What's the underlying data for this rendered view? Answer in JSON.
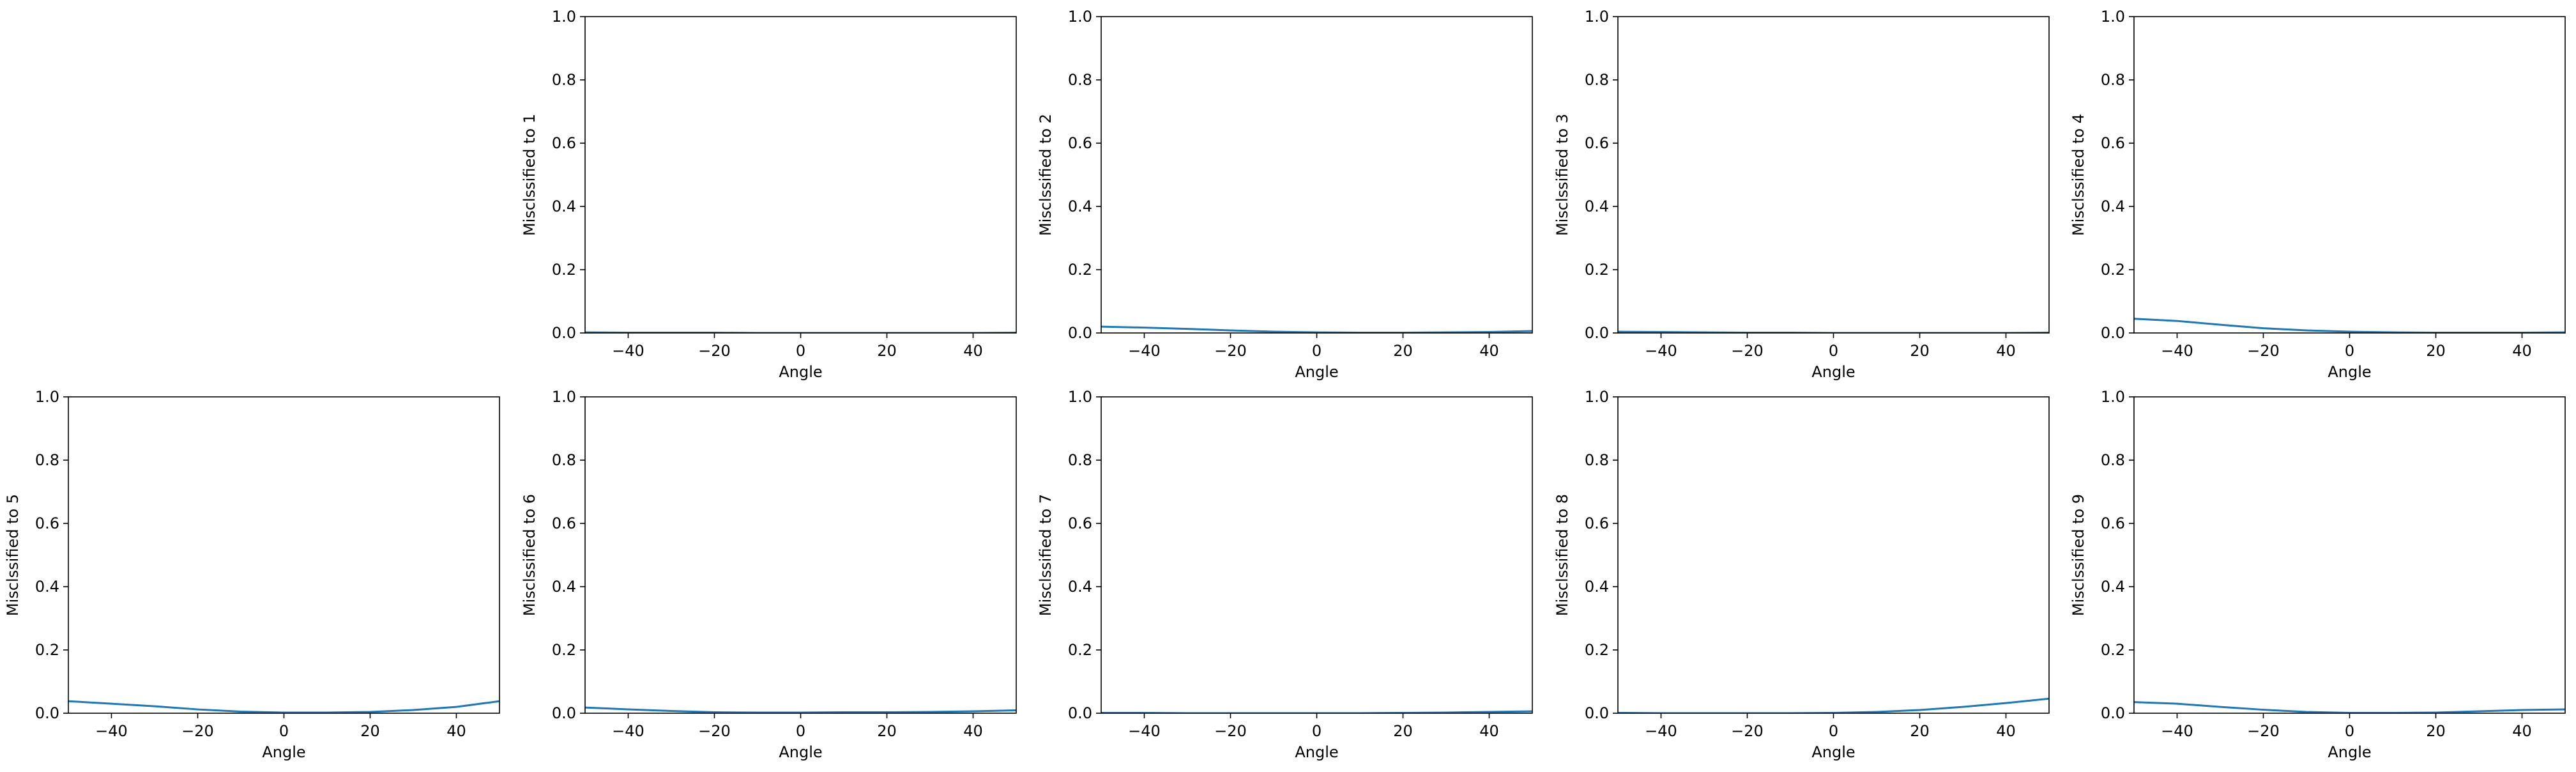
{
  "chart_data": [
    {
      "type": "line",
      "ylabel": "Misclssified to 1",
      "xlabel": "Angle",
      "xlim": [
        -50,
        50
      ],
      "ylim": [
        0,
        1
      ],
      "xticks": [
        -40,
        -20,
        0,
        20,
        40
      ],
      "xtick_labels": [
        "−40",
        "−20",
        "0",
        "20",
        "40"
      ],
      "yticks": [
        0,
        0.2,
        0.4,
        0.6,
        0.8,
        1.0
      ],
      "ytick_labels": [
        "0.0",
        "0.2",
        "0.4",
        "0.6",
        "0.8",
        "1.0"
      ],
      "series": [
        {
          "color": "#1f77b4",
          "x": [
            -50,
            -40,
            -30,
            -20,
            -10,
            0,
            10,
            20,
            30,
            40,
            50
          ],
          "y": [
            0.002,
            0.001,
            0.001,
            0.001,
            0.0,
            0.0,
            0.0,
            0.0,
            0.0,
            0.0,
            0.001
          ]
        }
      ]
    },
    {
      "type": "line",
      "ylabel": "Misclssified to 2",
      "xlabel": "Angle",
      "xlim": [
        -50,
        50
      ],
      "ylim": [
        0,
        1
      ],
      "xticks": [
        -40,
        -20,
        0,
        20,
        40
      ],
      "xtick_labels": [
        "−40",
        "−20",
        "0",
        "20",
        "40"
      ],
      "yticks": [
        0,
        0.2,
        0.4,
        0.6,
        0.8,
        1.0
      ],
      "ytick_labels": [
        "0.0",
        "0.2",
        "0.4",
        "0.6",
        "0.8",
        "1.0"
      ],
      "series": [
        {
          "color": "#1f77b4",
          "x": [
            -50,
            -40,
            -30,
            -20,
            -10,
            0,
            10,
            20,
            30,
            40,
            50
          ],
          "y": [
            0.02,
            0.017,
            0.013,
            0.008,
            0.004,
            0.002,
            0.001,
            0.001,
            0.002,
            0.003,
            0.006
          ]
        }
      ]
    },
    {
      "type": "line",
      "ylabel": "Misclssified to 3",
      "xlabel": "Angle",
      "xlim": [
        -50,
        50
      ],
      "ylim": [
        0,
        1
      ],
      "xticks": [
        -40,
        -20,
        0,
        20,
        40
      ],
      "xtick_labels": [
        "−40",
        "−20",
        "0",
        "20",
        "40"
      ],
      "yticks": [
        0,
        0.2,
        0.4,
        0.6,
        0.8,
        1.0
      ],
      "ytick_labels": [
        "0.0",
        "0.2",
        "0.4",
        "0.6",
        "0.8",
        "1.0"
      ],
      "series": [
        {
          "color": "#1f77b4",
          "x": [
            -50,
            -40,
            -30,
            -20,
            -10,
            0,
            10,
            20,
            30,
            40,
            50
          ],
          "y": [
            0.004,
            0.003,
            0.002,
            0.001,
            0.001,
            0.0,
            0.0,
            0.0,
            0.0,
            0.0,
            0.001
          ]
        }
      ]
    },
    {
      "type": "line",
      "ylabel": "Misclssified to 4",
      "xlabel": "Angle",
      "xlim": [
        -50,
        50
      ],
      "ylim": [
        0,
        1
      ],
      "xticks": [
        -40,
        -20,
        0,
        20,
        40
      ],
      "xtick_labels": [
        "−40",
        "−20",
        "0",
        "20",
        "40"
      ],
      "yticks": [
        0,
        0.2,
        0.4,
        0.6,
        0.8,
        1.0
      ],
      "ytick_labels": [
        "0.0",
        "0.2",
        "0.4",
        "0.6",
        "0.8",
        "1.0"
      ],
      "series": [
        {
          "color": "#1f77b4",
          "x": [
            -50,
            -40,
            -30,
            -20,
            -10,
            0,
            10,
            20,
            30,
            40,
            50
          ],
          "y": [
            0.045,
            0.038,
            0.026,
            0.015,
            0.008,
            0.004,
            0.002,
            0.001,
            0.001,
            0.001,
            0.002
          ]
        }
      ]
    },
    {
      "type": "line",
      "ylabel": "Misclssified to 5",
      "xlabel": "Angle",
      "xlim": [
        -50,
        50
      ],
      "ylim": [
        0,
        1
      ],
      "xticks": [
        -40,
        -20,
        0,
        20,
        40
      ],
      "xtick_labels": [
        "−40",
        "−20",
        "0",
        "20",
        "40"
      ],
      "yticks": [
        0,
        0.2,
        0.4,
        0.6,
        0.8,
        1.0
      ],
      "ytick_labels": [
        "0.0",
        "0.2",
        "0.4",
        "0.6",
        "0.8",
        "1.0"
      ],
      "series": [
        {
          "color": "#1f77b4",
          "x": [
            -50,
            -40,
            -30,
            -20,
            -10,
            0,
            10,
            20,
            30,
            40,
            50
          ],
          "y": [
            0.038,
            0.03,
            0.022,
            0.012,
            0.005,
            0.002,
            0.002,
            0.004,
            0.01,
            0.02,
            0.038
          ]
        }
      ]
    },
    {
      "type": "line",
      "ylabel": "Misclssified to 6",
      "xlabel": "Angle",
      "xlim": [
        -50,
        50
      ],
      "ylim": [
        0,
        1
      ],
      "xticks": [
        -40,
        -20,
        0,
        20,
        40
      ],
      "xtick_labels": [
        "−40",
        "−20",
        "0",
        "20",
        "40"
      ],
      "yticks": [
        0,
        0.2,
        0.4,
        0.6,
        0.8,
        1.0
      ],
      "ytick_labels": [
        "0.0",
        "0.2",
        "0.4",
        "0.6",
        "0.8",
        "1.0"
      ],
      "series": [
        {
          "color": "#1f77b4",
          "x": [
            -50,
            -40,
            -30,
            -20,
            -10,
            0,
            10,
            20,
            30,
            40,
            50
          ],
          "y": [
            0.018,
            0.012,
            0.007,
            0.003,
            0.002,
            0.002,
            0.003,
            0.003,
            0.004,
            0.006,
            0.009
          ]
        }
      ]
    },
    {
      "type": "line",
      "ylabel": "Misclssified to 7",
      "xlabel": "Angle",
      "xlim": [
        -50,
        50
      ],
      "ylim": [
        0,
        1
      ],
      "xticks": [
        -40,
        -20,
        0,
        20,
        40
      ],
      "xtick_labels": [
        "−40",
        "−20",
        "0",
        "20",
        "40"
      ],
      "yticks": [
        0,
        0.2,
        0.4,
        0.6,
        0.8,
        1.0
      ],
      "ytick_labels": [
        "0.0",
        "0.2",
        "0.4",
        "0.6",
        "0.8",
        "1.0"
      ],
      "series": [
        {
          "color": "#1f77b4",
          "x": [
            -50,
            -40,
            -30,
            -20,
            -10,
            0,
            10,
            20,
            30,
            40,
            50
          ],
          "y": [
            0.001,
            0.001,
            0.0,
            0.0,
            0.0,
            0.0,
            0.0,
            0.001,
            0.002,
            0.004,
            0.006
          ]
        }
      ]
    },
    {
      "type": "line",
      "ylabel": "Misclssified to 8",
      "xlabel": "Angle",
      "xlim": [
        -50,
        50
      ],
      "ylim": [
        0,
        1
      ],
      "xticks": [
        -40,
        -20,
        0,
        20,
        40
      ],
      "xtick_labels": [
        "−40",
        "−20",
        "0",
        "20",
        "40"
      ],
      "yticks": [
        0,
        0.2,
        0.4,
        0.6,
        0.8,
        1.0
      ],
      "ytick_labels": [
        "0.0",
        "0.2",
        "0.4",
        "0.6",
        "0.8",
        "1.0"
      ],
      "series": [
        {
          "color": "#1f77b4",
          "x": [
            -50,
            -40,
            -30,
            -20,
            -10,
            0,
            10,
            20,
            30,
            40,
            50
          ],
          "y": [
            0.001,
            0.0,
            0.0,
            0.0,
            0.0,
            0.001,
            0.004,
            0.01,
            0.02,
            0.032,
            0.046
          ]
        }
      ]
    },
    {
      "type": "line",
      "ylabel": "Misclssified to 9",
      "xlabel": "Angle",
      "xlim": [
        -50,
        50
      ],
      "ylim": [
        0,
        1
      ],
      "xticks": [
        -40,
        -20,
        0,
        20,
        40
      ],
      "xtick_labels": [
        "−40",
        "−20",
        "0",
        "20",
        "40"
      ],
      "yticks": [
        0,
        0.2,
        0.4,
        0.6,
        0.8,
        1.0
      ],
      "ytick_labels": [
        "0.0",
        "0.2",
        "0.4",
        "0.6",
        "0.8",
        "1.0"
      ],
      "series": [
        {
          "color": "#1f77b4",
          "x": [
            -50,
            -40,
            -30,
            -20,
            -10,
            0,
            10,
            20,
            30,
            40,
            50
          ],
          "y": [
            0.035,
            0.03,
            0.02,
            0.011,
            0.004,
            0.001,
            0.001,
            0.002,
            0.006,
            0.01,
            0.012
          ]
        }
      ]
    }
  ]
}
